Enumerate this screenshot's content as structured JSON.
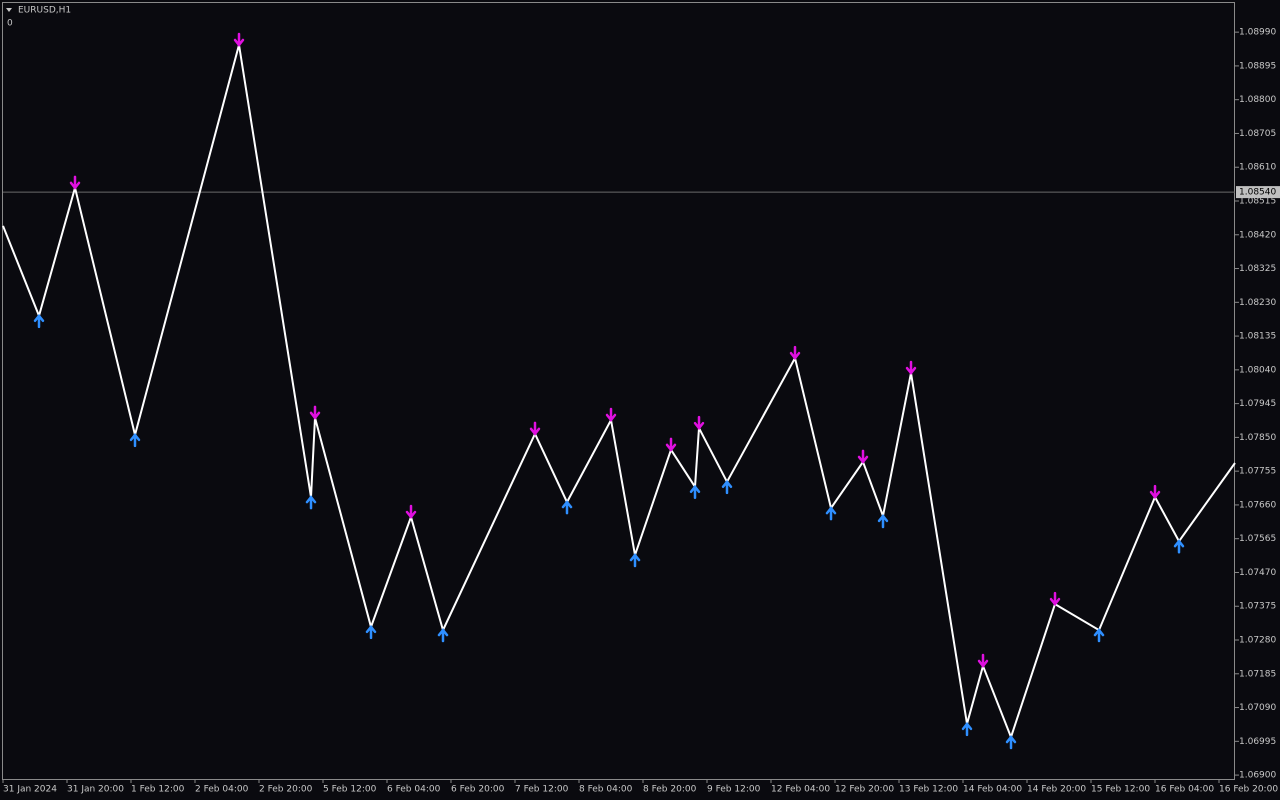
{
  "chart_data": {
    "type": "line",
    "title": "EURUSD,H1",
    "subtitle": "0",
    "xlim": [
      0,
      308
    ],
    "ylim": [
      1.06889,
      1.09072
    ],
    "xticks": [
      {
        "value": 0,
        "label": "31 Jan 2024"
      },
      {
        "value": 16,
        "label": "31 Jan 20:00"
      },
      {
        "value": 32,
        "label": "1 Feb 12:00"
      },
      {
        "value": 48,
        "label": "2 Feb 04:00"
      },
      {
        "value": 64,
        "label": "2 Feb 20:00"
      },
      {
        "value": 80,
        "label": "5 Feb 12:00"
      },
      {
        "value": 96,
        "label": "6 Feb 04:00"
      },
      {
        "value": 112,
        "label": "6 Feb 20:00"
      },
      {
        "value": 128,
        "label": "7 Feb 12:00"
      },
      {
        "value": 144,
        "label": "8 Feb 04:00"
      },
      {
        "value": 160,
        "label": "8 Feb 20:00"
      },
      {
        "value": 176,
        "label": "9 Feb 12:00"
      },
      {
        "value": 192,
        "label": "12 Feb 04:00"
      },
      {
        "value": 208,
        "label": "12 Feb 20:00"
      },
      {
        "value": 224,
        "label": "13 Feb 12:00"
      },
      {
        "value": 240,
        "label": "14 Feb 04:00"
      },
      {
        "value": 256,
        "label": "14 Feb 20:00"
      },
      {
        "value": 272,
        "label": "15 Feb 12:00"
      },
      {
        "value": 288,
        "label": "16 Feb 04:00"
      },
      {
        "value": 304,
        "label": "16 Feb 20:00"
      }
    ],
    "yticks": [
      {
        "value": 1.0899,
        "label": "1.08990"
      },
      {
        "value": 1.08895,
        "label": "1.08895"
      },
      {
        "value": 1.088,
        "label": "1.08800"
      },
      {
        "value": 1.08705,
        "label": "1.08705"
      },
      {
        "value": 1.0861,
        "label": "1.08610"
      },
      {
        "value": 1.08515,
        "label": "1.08515"
      },
      {
        "value": 1.0842,
        "label": "1.08420"
      },
      {
        "value": 1.08325,
        "label": "1.08325"
      },
      {
        "value": 1.0823,
        "label": "1.08230"
      },
      {
        "value": 1.08135,
        "label": "1.08135"
      },
      {
        "value": 1.0804,
        "label": "1.08040"
      },
      {
        "value": 1.07945,
        "label": "1.07945"
      },
      {
        "value": 1.0785,
        "label": "1.07850"
      },
      {
        "value": 1.07755,
        "label": "1.07755"
      },
      {
        "value": 1.0766,
        "label": "1.07660"
      },
      {
        "value": 1.07565,
        "label": "1.07565"
      },
      {
        "value": 1.0747,
        "label": "1.07470"
      },
      {
        "value": 1.07375,
        "label": "1.07375"
      },
      {
        "value": 1.0728,
        "label": "1.07280"
      },
      {
        "value": 1.07185,
        "label": "1.07185"
      },
      {
        "value": 1.0709,
        "label": "1.07090"
      },
      {
        "value": 1.06995,
        "label": "1.06995"
      },
      {
        "value": 1.069,
        "label": "1.06900"
      }
    ],
    "current_price": {
      "value": 1.0854,
      "label": "1.08540"
    },
    "high_color": "#e010e0",
    "low_color": "#2f8fff",
    "series": [
      {
        "color": "#ffffff",
        "x": [
          0,
          9,
          18,
          33,
          59,
          77,
          78,
          92,
          102,
          110,
          133,
          141,
          152,
          158,
          167,
          173,
          174,
          181,
          198,
          207,
          215,
          220,
          227,
          241,
          245,
          252,
          263,
          274,
          288,
          294,
          308
        ],
        "values": [
          1.08445,
          1.08192,
          1.08552,
          1.07857,
          1.08954,
          1.07682,
          1.07905,
          1.07317,
          1.07626,
          1.07308,
          1.0786,
          1.07668,
          1.07899,
          1.07519,
          1.07815,
          1.07711,
          1.07876,
          1.07725,
          1.08073,
          1.07651,
          1.07781,
          1.07629,
          1.08031,
          1.07044,
          1.07207,
          1.07007,
          1.07381,
          1.07308,
          1.07682,
          1.07558,
          1.07778
        ]
      }
    ]
  }
}
